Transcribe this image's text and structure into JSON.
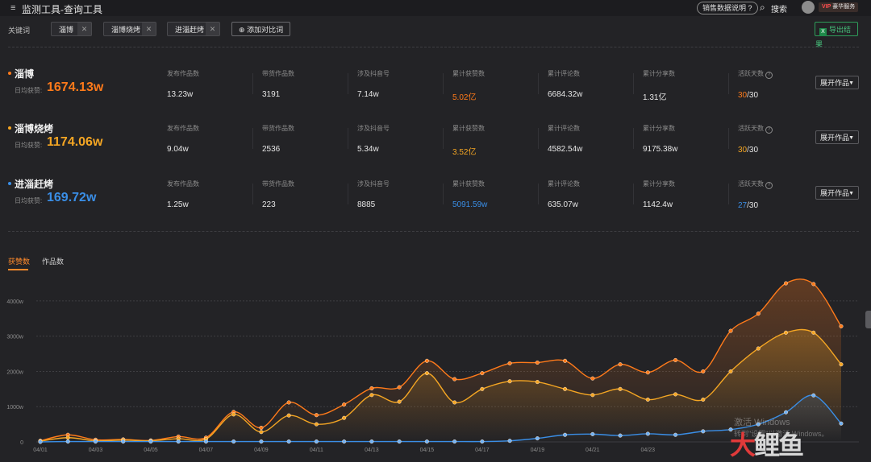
{
  "header": {
    "menu_icon": "menu-icon",
    "title": "监测工具-查询工具",
    "sales_help": "销售数据说明",
    "search_label": "搜索",
    "vip_prefix": "VIP",
    "vip_service": "豪华服务"
  },
  "keywords_bar": {
    "label": "关键词",
    "chips": [
      "淄博",
      "淄博烧烤",
      "进淄赶烤"
    ],
    "add_label": "添加对比词",
    "export_label": "导出结果"
  },
  "metric_labels": [
    "发布作品数",
    "带货作品数",
    "涉及抖音号",
    "累计获赞数",
    "累计评论数",
    "累计分享数",
    "活跃天数"
  ],
  "avg_label": "日均获赞:",
  "expand_label": "展开作品",
  "keywords": [
    {
      "name": "淄博",
      "color": "#ff7a1a",
      "avg_likes": "1674.13w",
      "metrics": [
        "13.23w",
        "3191",
        "7.14w",
        "5.02亿",
        "6684.32w",
        "1.31亿"
      ],
      "active_days": "30",
      "active_total": "/30"
    },
    {
      "name": "淄博烧烤",
      "color": "#f5a623",
      "avg_likes": "1174.06w",
      "metrics": [
        "9.04w",
        "2536",
        "5.34w",
        "3.52亿",
        "4582.54w",
        "9175.38w"
      ],
      "active_days": "30",
      "active_total": "/30"
    },
    {
      "name": "进淄赶烤",
      "color": "#3a8ee6",
      "avg_likes": "169.72w",
      "metrics": [
        "1.25w",
        "223",
        "8885",
        "5091.59w",
        "635.07w",
        "1142.4w"
      ],
      "active_days": "27",
      "active_total": "/30"
    }
  ],
  "chart_tabs": [
    "获赞数",
    "作品数"
  ],
  "chart_data": {
    "type": "area",
    "x": [
      "04/01",
      "04/02",
      "04/03",
      "04/04",
      "04/05",
      "04/06",
      "04/07",
      "04/08",
      "04/09",
      "04/10",
      "04/11",
      "04/12",
      "04/13",
      "04/14",
      "04/15",
      "04/16",
      "04/17",
      "04/18",
      "04/19",
      "04/20",
      "04/21",
      "04/22",
      "04/23",
      "04/24",
      "04/25",
      "04/26",
      "04/27",
      "04/28",
      "04/29",
      "04/30"
    ],
    "x_tick_labels": [
      "04/01",
      "04/03",
      "04/05",
      "04/07",
      "04/09",
      "04/11",
      "04/13",
      "04/15",
      "04/17",
      "04/19",
      "04/21",
      "04/23"
    ],
    "y_tick_labels": [
      "0",
      "1000w",
      "2000w",
      "3000w",
      "4000w"
    ],
    "ylim": [
      0,
      4500
    ],
    "series": [
      {
        "name": "淄博",
        "color": "#ff7a1a",
        "values": [
          30,
          200,
          60,
          70,
          40,
          150,
          120,
          850,
          400,
          1120,
          760,
          1060,
          1520,
          1550,
          2300,
          1780,
          1950,
          2230,
          2250,
          2300,
          1800,
          2200,
          1970,
          2320,
          2000,
          3150,
          3640,
          4500,
          4480,
          3280
        ]
      },
      {
        "name": "淄博烧烤",
        "color": "#f5a623",
        "values": [
          20,
          120,
          30,
          50,
          30,
          90,
          80,
          780,
          280,
          750,
          500,
          680,
          1330,
          1140,
          1950,
          1120,
          1500,
          1720,
          1700,
          1500,
          1330,
          1500,
          1200,
          1350,
          1200,
          2000,
          2650,
          3100,
          3100,
          2200
        ]
      },
      {
        "name": "进淄赶烤",
        "color": "#3a8ee6",
        "values": [
          0,
          10,
          10,
          10,
          10,
          10,
          10,
          10,
          10,
          10,
          10,
          10,
          10,
          10,
          10,
          10,
          10,
          30,
          100,
          200,
          220,
          180,
          230,
          200,
          300,
          350,
          500,
          840,
          1320,
          520
        ]
      }
    ]
  },
  "watermark": {
    "line1": "激活 Windows",
    "line2": "转到\"设置\"以激活 Windows。"
  },
  "logo": {
    "text_red": "大",
    "text_gray": "鲤鱼"
  }
}
